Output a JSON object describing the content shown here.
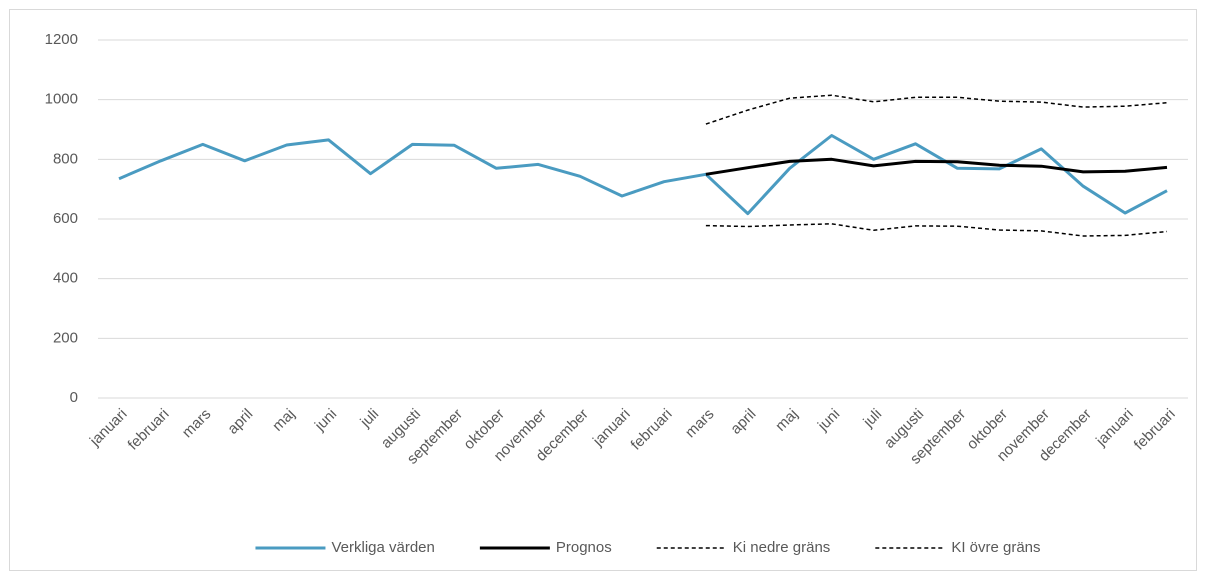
{
  "chart_data": {
    "type": "line",
    "categories": [
      "januari",
      "februari",
      "mars",
      "april",
      "maj",
      "juni",
      "juli",
      "augusti",
      "september",
      "oktober",
      "november",
      "december",
      "januari",
      "februari",
      "mars",
      "april",
      "maj",
      "juni",
      "juli",
      "augusti",
      "september",
      "oktober",
      "november",
      "december",
      "januari",
      "februari"
    ],
    "series": [
      {
        "name": "Verkliga värden",
        "color": "#4a9bc1",
        "dash": "solid",
        "values": [
          735,
          795,
          850,
          795,
          848,
          865,
          752,
          850,
          847,
          770,
          783,
          743,
          677,
          725,
          750,
          618,
          770,
          880,
          800,
          852,
          770,
          768,
          835,
          710,
          620,
          695
        ]
      },
      {
        "name": "Prognos",
        "color": "#000000",
        "dash": "solid",
        "values": [
          null,
          null,
          null,
          null,
          null,
          null,
          null,
          null,
          null,
          null,
          null,
          null,
          null,
          null,
          750,
          772,
          793,
          800,
          778,
          793,
          792,
          780,
          777,
          758,
          760,
          773
        ]
      },
      {
        "name": "Ki nedre gräns",
        "color": "#000000",
        "dash": "dashed",
        "values": [
          null,
          null,
          null,
          null,
          null,
          null,
          null,
          null,
          null,
          null,
          null,
          null,
          null,
          null,
          578,
          575,
          580,
          584,
          562,
          577,
          576,
          563,
          560,
          543,
          545,
          558
        ]
      },
      {
        "name": "KI övre gräns",
        "color": "#000000",
        "dash": "dashed",
        "values": [
          null,
          null,
          null,
          null,
          null,
          null,
          null,
          null,
          null,
          null,
          null,
          null,
          null,
          null,
          918,
          965,
          1005,
          1015,
          993,
          1008,
          1008,
          995,
          992,
          975,
          978,
          990
        ]
      }
    ],
    "ylim": [
      0,
      1200
    ],
    "yticks": [
      0,
      200,
      400,
      600,
      800,
      1000,
      1200
    ],
    "grid": true,
    "legend": "bottom"
  }
}
